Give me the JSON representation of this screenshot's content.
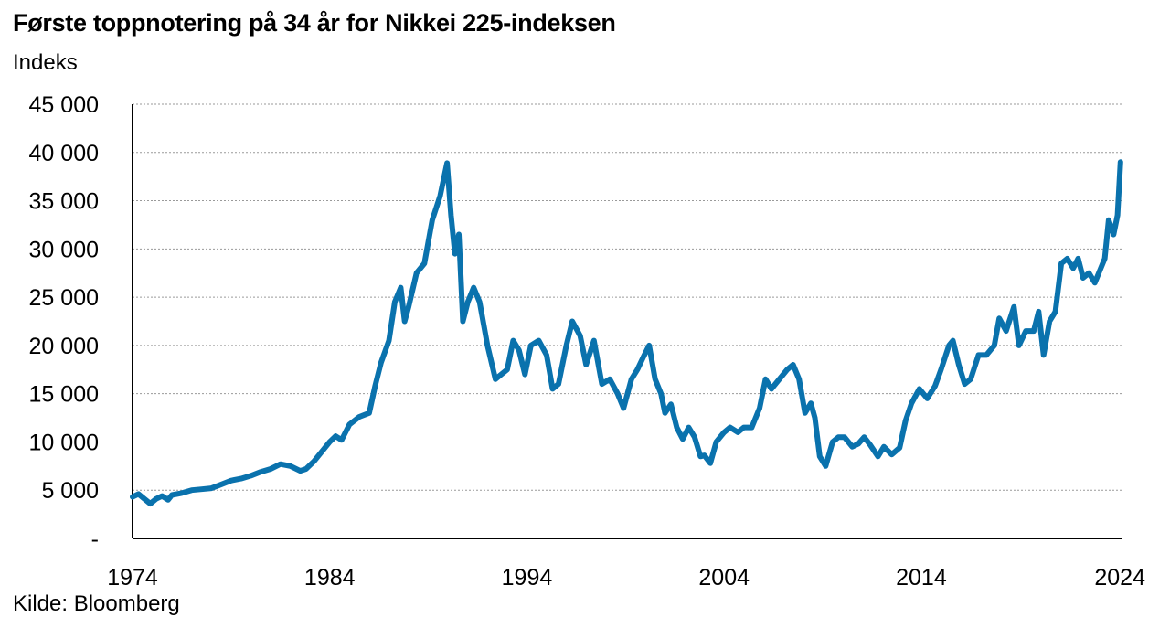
{
  "title": "Første toppnotering på 34 år for Nikkei 225-indeksen",
  "unit_label": "Indeks",
  "source": "Kilde: Bloomberg",
  "chart_data": {
    "type": "line",
    "title": "Første toppnotering på 34 år for Nikkei 225-indeksen",
    "ylabel": "Indeks",
    "xlim": [
      1974,
      2024.2
    ],
    "ylim": [
      0,
      45000
    ],
    "grid": true,
    "line_color": "#0A72AD",
    "x_ticks": [
      1974,
      1984,
      1994,
      2004,
      2014,
      2024
    ],
    "x_tick_labels": [
      "1974",
      "1984",
      "1994",
      "2004",
      "2014",
      "2024"
    ],
    "y_ticks": [
      0,
      5000,
      10000,
      15000,
      20000,
      25000,
      30000,
      35000,
      40000,
      45000
    ],
    "y_tick_labels": [
      "-",
      "5 000",
      "10 000",
      "15 000",
      "20 000",
      "25 000",
      "30 000",
      "35 000",
      "40 000",
      "45 000"
    ],
    "series": [
      {
        "values": [
          [
            1974.0,
            4300
          ],
          [
            1974.3,
            4600
          ],
          [
            1974.6,
            4100
          ],
          [
            1974.9,
            3600
          ],
          [
            1975.2,
            4100
          ],
          [
            1975.5,
            4400
          ],
          [
            1975.8,
            4000
          ],
          [
            1976.0,
            4500
          ],
          [
            1976.5,
            4700
          ],
          [
            1977.0,
            5000
          ],
          [
            1977.5,
            5100
          ],
          [
            1978.0,
            5200
          ],
          [
            1978.5,
            5600
          ],
          [
            1979.0,
            6000
          ],
          [
            1979.5,
            6200
          ],
          [
            1980.0,
            6500
          ],
          [
            1980.5,
            6900
          ],
          [
            1981.0,
            7200
          ],
          [
            1981.5,
            7700
          ],
          [
            1982.0,
            7500
          ],
          [
            1982.5,
            7000
          ],
          [
            1982.8,
            7200
          ],
          [
            1983.2,
            8000
          ],
          [
            1983.6,
            9000
          ],
          [
            1984.0,
            10000
          ],
          [
            1984.3,
            10600
          ],
          [
            1984.6,
            10200
          ],
          [
            1985.0,
            11800
          ],
          [
            1985.5,
            12600
          ],
          [
            1986.0,
            13000
          ],
          [
            1986.3,
            15800
          ],
          [
            1986.6,
            18200
          ],
          [
            1987.0,
            20500
          ],
          [
            1987.3,
            24500
          ],
          [
            1987.6,
            26000
          ],
          [
            1987.8,
            22500
          ],
          [
            1988.0,
            24000
          ],
          [
            1988.4,
            27500
          ],
          [
            1988.8,
            28500
          ],
          [
            1989.2,
            33000
          ],
          [
            1989.6,
            35500
          ],
          [
            1989.95,
            38900
          ],
          [
            1990.15,
            33500
          ],
          [
            1990.35,
            29500
          ],
          [
            1990.55,
            31500
          ],
          [
            1990.75,
            22500
          ],
          [
            1991.0,
            24500
          ],
          [
            1991.3,
            26000
          ],
          [
            1991.6,
            24500
          ],
          [
            1992.0,
            20000
          ],
          [
            1992.4,
            16500
          ],
          [
            1992.7,
            17000
          ],
          [
            1993.0,
            17500
          ],
          [
            1993.3,
            20500
          ],
          [
            1993.6,
            19500
          ],
          [
            1993.9,
            17000
          ],
          [
            1994.2,
            20000
          ],
          [
            1994.6,
            20500
          ],
          [
            1995.0,
            19000
          ],
          [
            1995.3,
            15500
          ],
          [
            1995.6,
            16000
          ],
          [
            1996.0,
            20000
          ],
          [
            1996.3,
            22500
          ],
          [
            1996.7,
            21000
          ],
          [
            1997.0,
            18000
          ],
          [
            1997.4,
            20500
          ],
          [
            1997.8,
            16000
          ],
          [
            1998.2,
            16500
          ],
          [
            1998.6,
            15000
          ],
          [
            1998.9,
            13500
          ],
          [
            1999.3,
            16500
          ],
          [
            1999.6,
            17500
          ],
          [
            1999.9,
            18800
          ],
          [
            2000.2,
            20000
          ],
          [
            2000.5,
            16500
          ],
          [
            2000.8,
            15000
          ],
          [
            2001.0,
            13000
          ],
          [
            2001.3,
            13900
          ],
          [
            2001.6,
            11500
          ],
          [
            2001.9,
            10300
          ],
          [
            2002.2,
            11500
          ],
          [
            2002.5,
            10500
          ],
          [
            2002.8,
            8500
          ],
          [
            2003.0,
            8600
          ],
          [
            2003.3,
            7800
          ],
          [
            2003.6,
            10000
          ],
          [
            2004.0,
            11000
          ],
          [
            2004.3,
            11500
          ],
          [
            2004.7,
            11000
          ],
          [
            2005.0,
            11500
          ],
          [
            2005.4,
            11500
          ],
          [
            2005.8,
            13500
          ],
          [
            2006.1,
            16500
          ],
          [
            2006.4,
            15500
          ],
          [
            2006.8,
            16500
          ],
          [
            2007.2,
            17500
          ],
          [
            2007.5,
            18000
          ],
          [
            2007.8,
            16500
          ],
          [
            2008.1,
            13000
          ],
          [
            2008.4,
            14000
          ],
          [
            2008.6,
            12500
          ],
          [
            2008.85,
            8500
          ],
          [
            2009.15,
            7500
          ],
          [
            2009.5,
            10000
          ],
          [
            2009.8,
            10500
          ],
          [
            2010.1,
            10500
          ],
          [
            2010.5,
            9500
          ],
          [
            2010.8,
            9800
          ],
          [
            2011.1,
            10500
          ],
          [
            2011.4,
            9700
          ],
          [
            2011.8,
            8500
          ],
          [
            2012.1,
            9500
          ],
          [
            2012.5,
            8700
          ],
          [
            2012.9,
            9400
          ],
          [
            2013.2,
            12200
          ],
          [
            2013.5,
            14000
          ],
          [
            2013.9,
            15500
          ],
          [
            2014.3,
            14500
          ],
          [
            2014.7,
            15800
          ],
          [
            2015.0,
            17500
          ],
          [
            2015.4,
            20000
          ],
          [
            2015.6,
            20500
          ],
          [
            2015.9,
            18000
          ],
          [
            2016.2,
            16000
          ],
          [
            2016.5,
            16500
          ],
          [
            2016.9,
            19000
          ],
          [
            2017.3,
            19000
          ],
          [
            2017.7,
            20000
          ],
          [
            2017.95,
            22800
          ],
          [
            2018.3,
            21500
          ],
          [
            2018.7,
            24000
          ],
          [
            2018.95,
            20000
          ],
          [
            2019.3,
            21500
          ],
          [
            2019.7,
            21500
          ],
          [
            2019.95,
            23500
          ],
          [
            2020.2,
            19000
          ],
          [
            2020.5,
            22500
          ],
          [
            2020.8,
            23500
          ],
          [
            2021.1,
            28500
          ],
          [
            2021.4,
            29000
          ],
          [
            2021.7,
            28000
          ],
          [
            2021.95,
            29000
          ],
          [
            2022.2,
            27000
          ],
          [
            2022.5,
            27500
          ],
          [
            2022.8,
            26500
          ],
          [
            2023.0,
            27500
          ],
          [
            2023.3,
            29000
          ],
          [
            2023.5,
            33000
          ],
          [
            2023.75,
            31500
          ],
          [
            2023.95,
            33500
          ],
          [
            2024.1,
            39000
          ]
        ]
      }
    ]
  }
}
